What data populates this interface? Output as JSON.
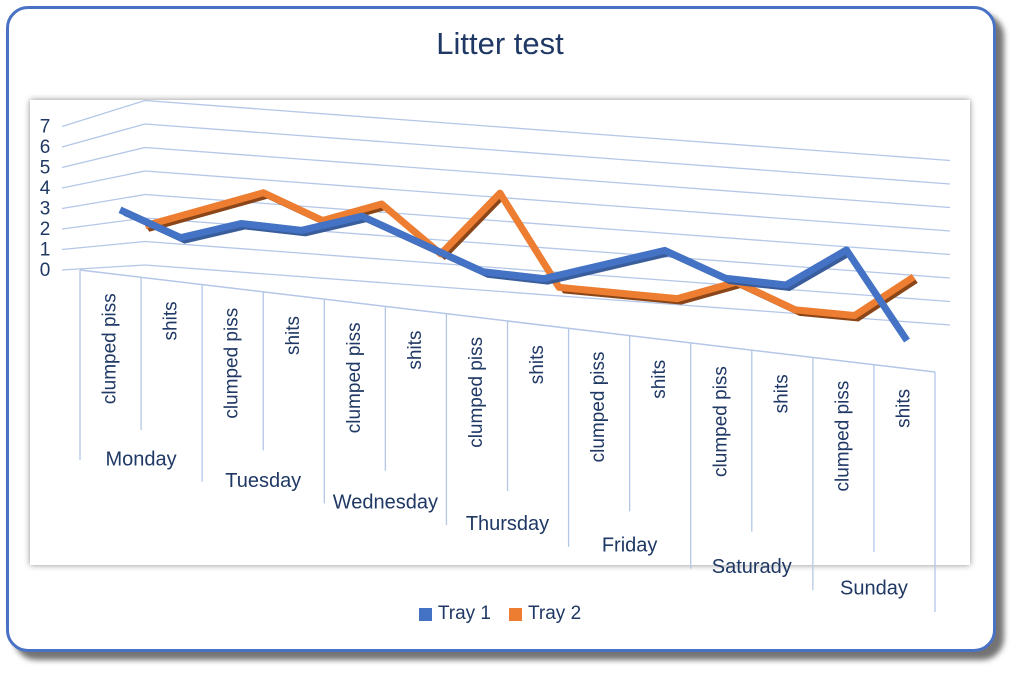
{
  "chart_data": {
    "type": "line",
    "title": "Litter test",
    "days": [
      "Monday",
      "Tuesday",
      "Wednesday",
      "Thursday",
      "Friday",
      "Saturady",
      "Sunday"
    ],
    "sub_categories": [
      "clumped piss",
      "shits"
    ],
    "yticks": [
      "0",
      "1",
      "2",
      "3",
      "4",
      "5",
      "6",
      "7"
    ],
    "ylim": [
      0,
      7
    ],
    "grid": true,
    "style": "3D line",
    "legend_position": "bottom",
    "series": [
      {
        "name": "Tray 1",
        "color": "#4472c4",
        "values": [
          3,
          2,
          3,
          3,
          4,
          3,
          2,
          2,
          3,
          4,
          3,
          3,
          5,
          1
        ]
      },
      {
        "name": "Tray 2",
        "color": "#ed7d31",
        "values": [
          2,
          3,
          4,
          3,
          4,
          2,
          5,
          1,
          1,
          1,
          2,
          1,
          1,
          3
        ]
      }
    ]
  }
}
